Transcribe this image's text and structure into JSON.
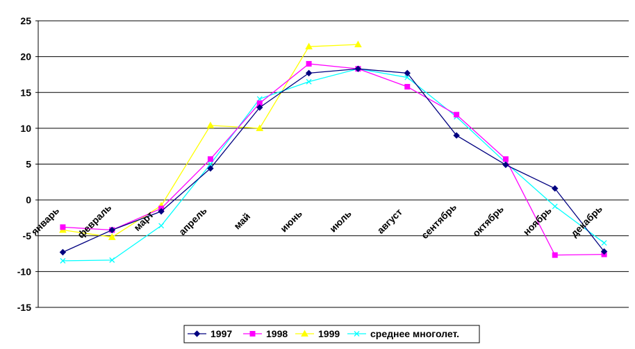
{
  "chart_data": {
    "type": "line",
    "categories": [
      "январь",
      "февраль",
      "март",
      "апрель",
      "май",
      "июнь",
      "июль",
      "август",
      "сентябрь",
      "октябрь",
      "ноябрь",
      "декабрь"
    ],
    "ylim": [
      -15,
      25
    ],
    "yticks": [
      25,
      20,
      15,
      10,
      5,
      0,
      -5,
      -10,
      -15
    ],
    "grid": true,
    "legend_position": "bottom",
    "series": [
      {
        "name": "1997",
        "color": "#000080",
        "marker": "diamond",
        "values": [
          -7.3,
          -4.2,
          -1.6,
          4.4,
          12.9,
          17.7,
          18.3,
          17.7,
          9.0,
          4.9,
          1.6,
          -7.2
        ]
      },
      {
        "name": "1998",
        "color": "#FF00FF",
        "marker": "square",
        "values": [
          -3.8,
          -4.2,
          -1.2,
          5.7,
          13.5,
          19.0,
          18.3,
          15.8,
          11.9,
          5.7,
          -7.7,
          -7.6
        ]
      },
      {
        "name": "1999",
        "color": "#FFFF00",
        "marker": "triangle",
        "values": [
          -4.2,
          -5.2,
          -0.8,
          10.4,
          10.0,
          21.4,
          21.7,
          null,
          null,
          null,
          null,
          null
        ]
      },
      {
        "name": "среднее многолет.",
        "color": "#00FFFF",
        "marker": "x",
        "values": [
          -8.5,
          -8.4,
          -3.6,
          5.0,
          14.1,
          16.5,
          18.3,
          17.1,
          11.6,
          5.2,
          -0.9,
          -6.0
        ]
      }
    ]
  }
}
